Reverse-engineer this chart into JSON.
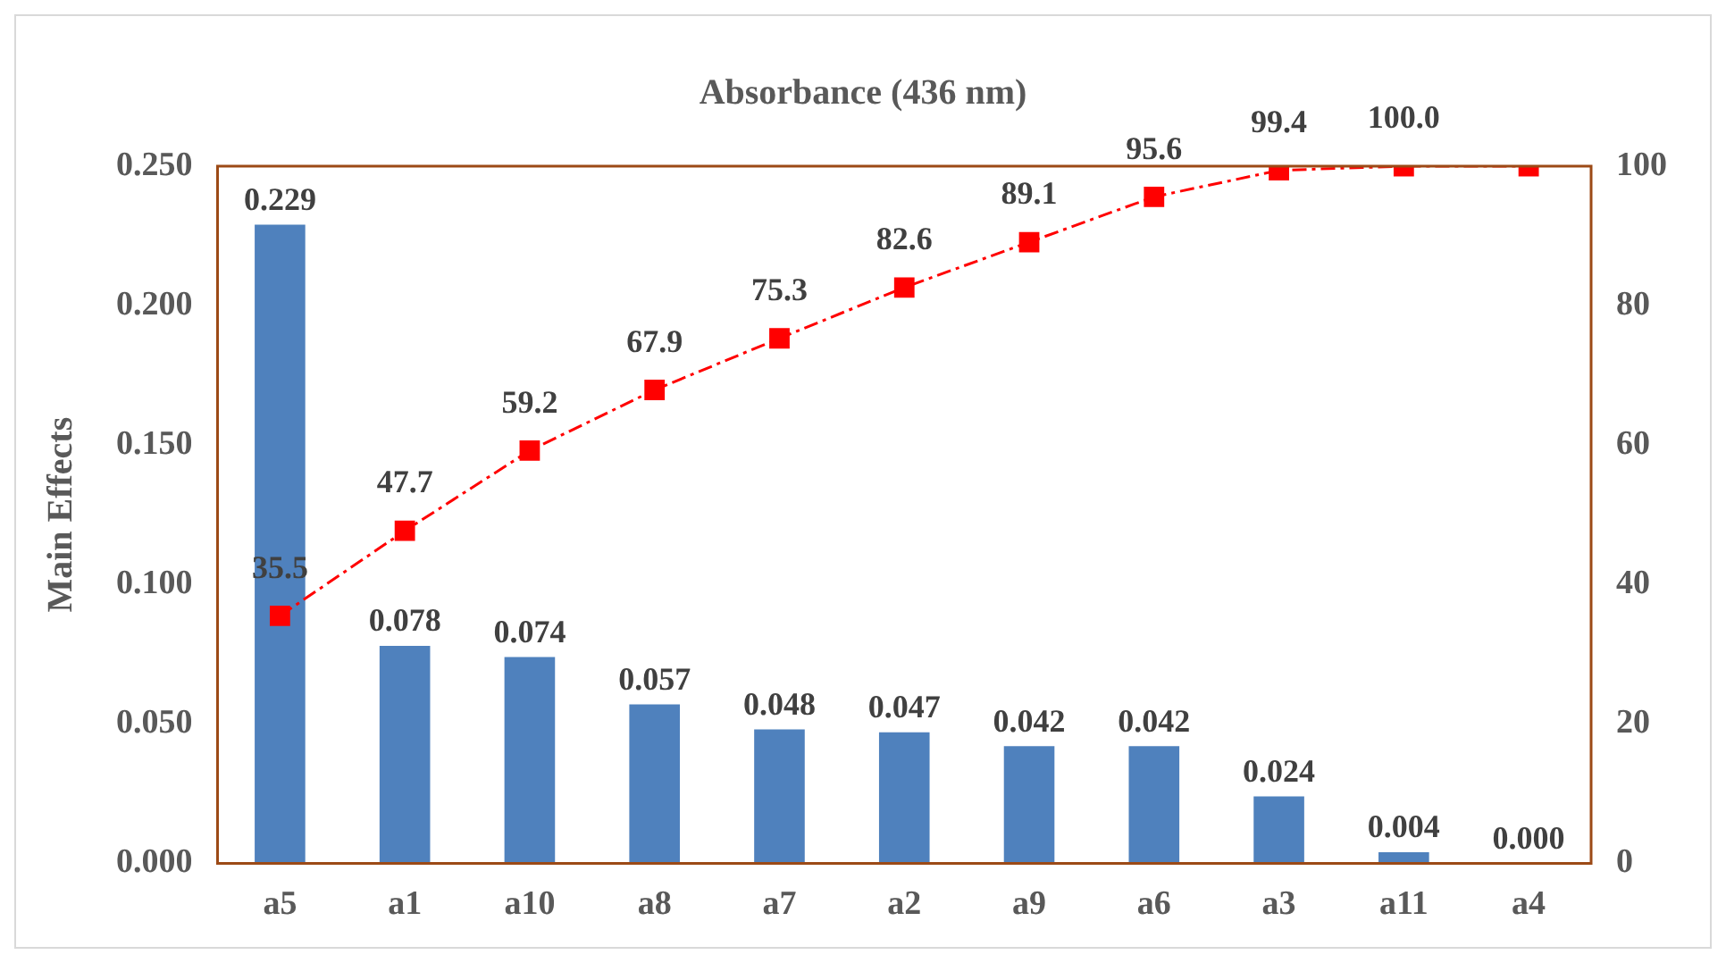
{
  "chart_data": {
    "type": "bar",
    "title": "Absorbance (436 nm)",
    "ylabel": "Main Effects",
    "categories": [
      "a5",
      "a1",
      "a10",
      "a8",
      "a7",
      "a2",
      "a9",
      "a6",
      "a3",
      "a11",
      "a4"
    ],
    "series": [
      {
        "color": "#4f81bd",
        "values": [
          0.229,
          0.078,
          0.074,
          0.057,
          0.048,
          0.047,
          0.042,
          0.042,
          0.024,
          0.004,
          0.0
        ],
        "value_labels": [
          "0.229",
          "0.078",
          "0.074",
          "0.057",
          "0.048",
          "0.047",
          "0.042",
          "0.042",
          "0.024",
          "0.004",
          "0.000"
        ]
      },
      {
        "type": "line",
        "axis": "y2",
        "color": "#ff0000",
        "marker": "square",
        "line_style": "dashed",
        "values": [
          35.5,
          47.7,
          59.2,
          67.9,
          75.3,
          82.6,
          89.1,
          95.6,
          99.4,
          100.0,
          100.0
        ],
        "value_labels": [
          "35.5",
          "47.7",
          "59.2",
          "67.9",
          "75.3",
          "82.6",
          "89.1",
          "95.6",
          "99.4",
          "100.0",
          null
        ]
      }
    ],
    "ylim": [
      0,
      0.25
    ],
    "yticks": [
      {
        "value": 0,
        "label": "0.000"
      },
      {
        "value": 0.05,
        "label": "0.050"
      },
      {
        "value": 0.1,
        "label": "0.100"
      },
      {
        "value": 0.15,
        "label": "0.150"
      },
      {
        "value": 0.2,
        "label": "0.200"
      },
      {
        "value": 0.25,
        "label": "0.250"
      }
    ],
    "y2lim": [
      0,
      100
    ],
    "y2ticks": [
      0,
      20,
      40,
      60,
      80,
      100
    ],
    "grid": false,
    "legend": false
  }
}
